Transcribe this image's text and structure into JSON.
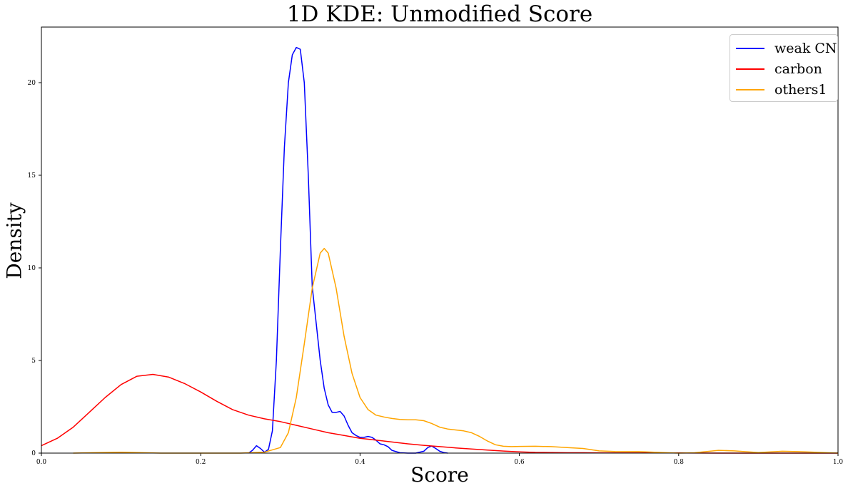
{
  "chart_data": {
    "type": "line",
    "title": "1D KDE: Unmodified Score",
    "xlabel": "Score",
    "ylabel": "Density",
    "xlim": [
      0.0,
      1.0
    ],
    "ylim": [
      0,
      23
    ],
    "xticks": [
      "0.0",
      "0.2",
      "0.4",
      "0.6",
      "0.8",
      "1.0"
    ],
    "yticks": [
      "0",
      "5",
      "10",
      "15",
      "20"
    ],
    "xtick_values": [
      0.0,
      0.2,
      0.4,
      0.6,
      0.8,
      1.0
    ],
    "ytick_values": [
      0,
      5,
      10,
      15,
      20
    ],
    "grid": false,
    "legend_position": "top-right",
    "series": [
      {
        "name": "weak CN",
        "color": "#0000ff",
        "x": [
          0.26,
          0.265,
          0.27,
          0.275,
          0.28,
          0.285,
          0.29,
          0.295,
          0.3,
          0.305,
          0.31,
          0.315,
          0.32,
          0.325,
          0.33,
          0.335,
          0.34,
          0.345,
          0.35,
          0.355,
          0.36,
          0.365,
          0.37,
          0.375,
          0.38,
          0.385,
          0.39,
          0.395,
          0.4,
          0.405,
          0.41,
          0.415,
          0.42,
          0.425,
          0.43,
          0.435,
          0.44,
          0.45,
          0.46,
          0.47,
          0.48,
          0.485,
          0.49,
          0.495,
          0.5,
          0.505,
          0.51
        ],
        "y": [
          0.0,
          0.15,
          0.4,
          0.25,
          0.05,
          0.2,
          1.2,
          5.0,
          11.0,
          16.5,
          20.0,
          21.5,
          21.9,
          21.8,
          20.0,
          15.0,
          9.0,
          7.0,
          5.0,
          3.5,
          2.6,
          2.2,
          2.2,
          2.25,
          2.0,
          1.5,
          1.1,
          0.95,
          0.85,
          0.85,
          0.9,
          0.85,
          0.7,
          0.5,
          0.45,
          0.35,
          0.15,
          0.02,
          0.0,
          0.0,
          0.1,
          0.3,
          0.38,
          0.25,
          0.1,
          0.03,
          0.0
        ]
      },
      {
        "name": "carbon",
        "color": "#ff0000",
        "x": [
          0.0,
          0.02,
          0.04,
          0.06,
          0.08,
          0.1,
          0.12,
          0.14,
          0.16,
          0.18,
          0.2,
          0.22,
          0.24,
          0.26,
          0.28,
          0.3,
          0.32,
          0.34,
          0.36,
          0.38,
          0.4,
          0.42,
          0.44,
          0.46,
          0.48,
          0.5,
          0.52,
          0.54,
          0.56,
          0.58,
          0.6,
          0.62,
          0.64,
          0.66,
          0.68,
          0.7,
          0.75,
          0.8,
          0.85,
          0.9,
          0.95,
          1.0
        ],
        "y": [
          0.4,
          0.8,
          1.4,
          2.2,
          3.0,
          3.7,
          4.15,
          4.25,
          4.1,
          3.75,
          3.3,
          2.8,
          2.35,
          2.05,
          1.85,
          1.7,
          1.5,
          1.3,
          1.1,
          0.95,
          0.8,
          0.7,
          0.6,
          0.5,
          0.42,
          0.35,
          0.28,
          0.22,
          0.16,
          0.11,
          0.07,
          0.04,
          0.03,
          0.02,
          0.02,
          0.01,
          0.01,
          0.01,
          0.0,
          0.0,
          0.0,
          0.0
        ]
      },
      {
        "name": "others1",
        "color": "#ffa500",
        "x": [
          0.04,
          0.1,
          0.15,
          0.2,
          0.25,
          0.28,
          0.3,
          0.31,
          0.32,
          0.33,
          0.34,
          0.35,
          0.355,
          0.36,
          0.37,
          0.38,
          0.39,
          0.4,
          0.41,
          0.42,
          0.43,
          0.44,
          0.45,
          0.46,
          0.47,
          0.48,
          0.49,
          0.5,
          0.51,
          0.52,
          0.53,
          0.54,
          0.55,
          0.56,
          0.57,
          0.58,
          0.59,
          0.6,
          0.62,
          0.64,
          0.66,
          0.68,
          0.7,
          0.72,
          0.75,
          0.78,
          0.8,
          0.82,
          0.85,
          0.87,
          0.9,
          0.93,
          0.95,
          1.0
        ],
        "y": [
          0.0,
          0.05,
          0.0,
          0.0,
          0.0,
          0.05,
          0.3,
          1.1,
          3.0,
          5.9,
          8.9,
          10.8,
          11.05,
          10.8,
          8.9,
          6.3,
          4.3,
          3.0,
          2.35,
          2.05,
          1.95,
          1.87,
          1.82,
          1.8,
          1.8,
          1.75,
          1.6,
          1.4,
          1.3,
          1.25,
          1.2,
          1.1,
          0.9,
          0.65,
          0.45,
          0.37,
          0.35,
          0.36,
          0.37,
          0.35,
          0.3,
          0.25,
          0.12,
          0.09,
          0.08,
          0.03,
          0.0,
          0.02,
          0.15,
          0.12,
          0.03,
          0.1,
          0.08,
          0.0
        ]
      }
    ]
  }
}
